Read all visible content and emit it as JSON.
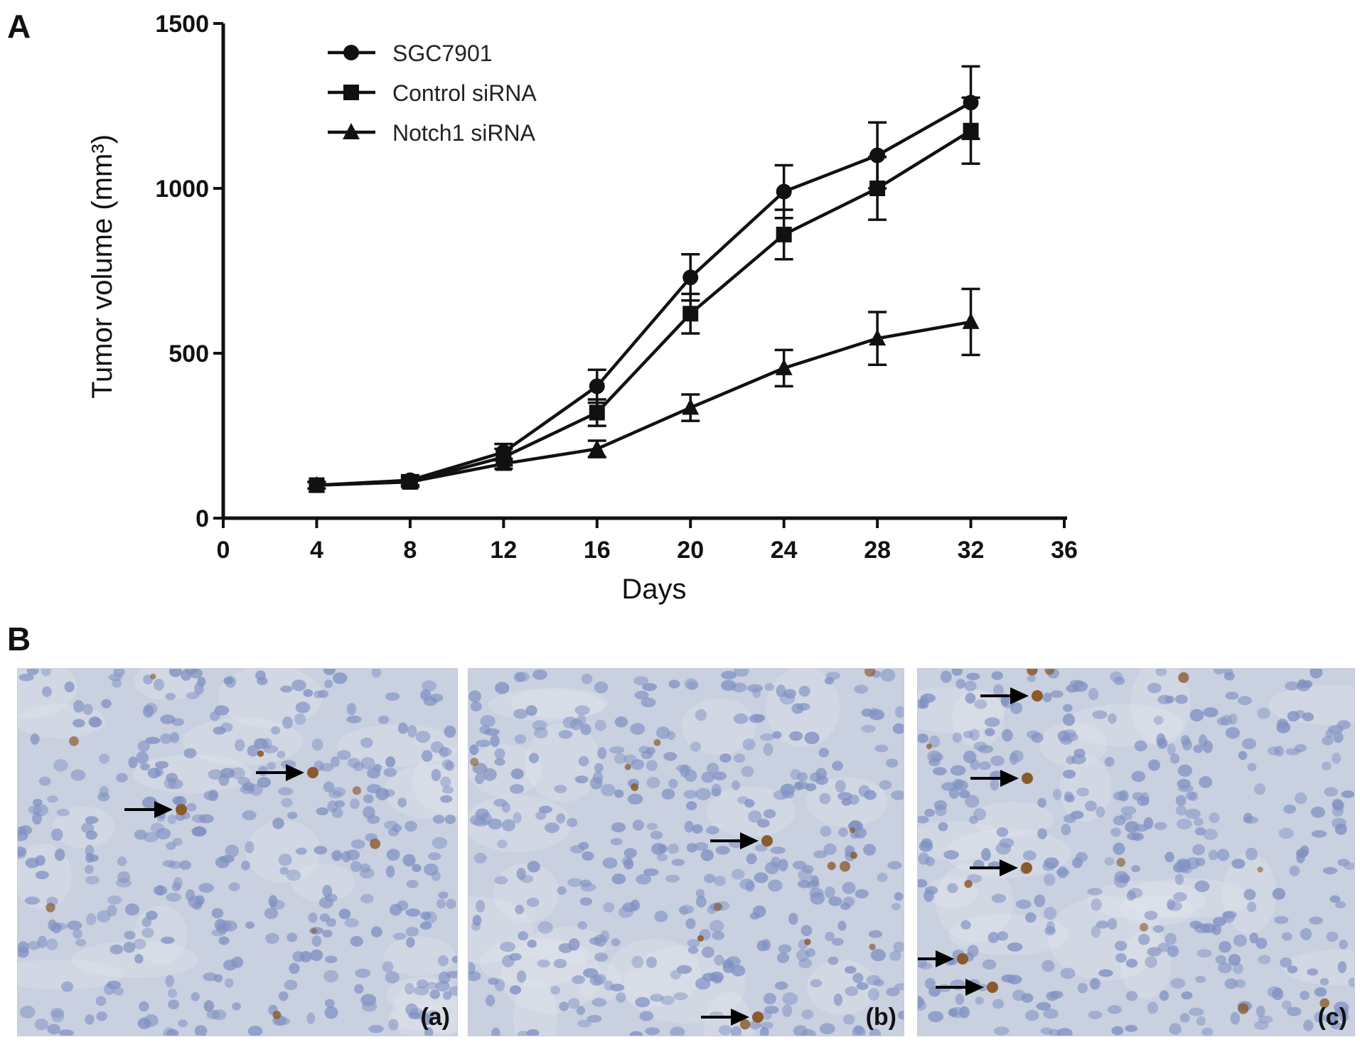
{
  "panels": {
    "a_letter": "A",
    "b_letter": "B"
  },
  "chart_data": {
    "type": "line",
    "title": "",
    "xlabel": "Days",
    "ylabel": "Tumor volume (mm³)",
    "xlim": [
      0,
      36
    ],
    "ylim": [
      0,
      1500
    ],
    "xticks": [
      0,
      4,
      8,
      12,
      16,
      20,
      24,
      28,
      32,
      36
    ],
    "yticks": [
      0,
      500,
      1000,
      1500
    ],
    "grid": false,
    "legend_position": "top-left",
    "x": [
      4,
      8,
      12,
      16,
      20,
      24,
      28,
      32
    ],
    "series": [
      {
        "name": "SGC7901",
        "marker": "circle",
        "values": [
          100,
          115,
          200,
          400,
          730,
          990,
          1100,
          1260
        ],
        "errors": [
          10,
          15,
          25,
          50,
          70,
          80,
          100,
          110
        ]
      },
      {
        "name": "Control siRNA",
        "marker": "square",
        "values": [
          100,
          110,
          185,
          320,
          620,
          860,
          1000,
          1175
        ],
        "errors": [
          10,
          15,
          25,
          40,
          60,
          75,
          95,
          100
        ]
      },
      {
        "name": "Notch1 siRNA",
        "marker": "triangle",
        "values": [
          100,
          110,
          165,
          210,
          335,
          455,
          545,
          595
        ],
        "errors": [
          10,
          12,
          15,
          25,
          40,
          55,
          80,
          100
        ]
      }
    ]
  },
  "histology": {
    "panels": [
      {
        "tag": "(a)"
      },
      {
        "tag": "(b)"
      },
      {
        "tag": "(c)"
      }
    ]
  },
  "colors": {
    "ink": "#111111",
    "tissue_background": "#c9d0e0",
    "nucleus": "#7f90c2",
    "stain": "#8a5a2b"
  }
}
